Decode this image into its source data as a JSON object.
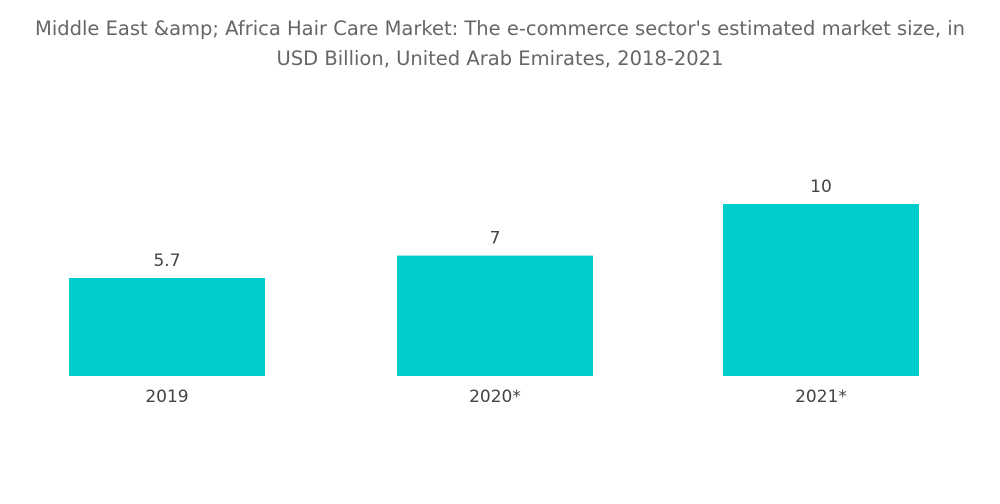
{
  "chart_data": {
    "type": "bar",
    "title_line1": "Middle East &amp; Africa Hair Care Market: The e-commerce sector's estimated market size, in",
    "title_line2": "USD Billion, United Arab Emirates, 2018-2021",
    "categories": [
      "2019",
      "2020*",
      "2021*"
    ],
    "values": [
      5.7,
      7,
      10
    ],
    "value_labels": [
      "5.7",
      "7",
      "10"
    ],
    "bar_color": "#00CCCC",
    "text_color": "#444444",
    "title_color": "#666666",
    "grid": false,
    "legend": "none"
  }
}
